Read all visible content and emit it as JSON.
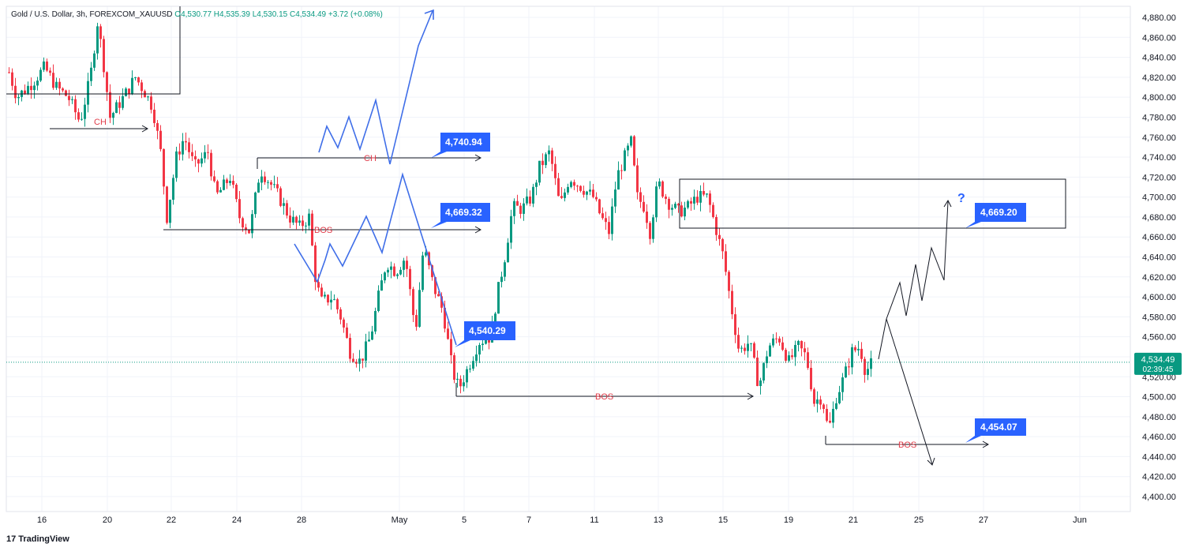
{
  "legend": {
    "symbol": "Gold / U.S. Dollar, 3h, FOREXCOM_XAUUSD",
    "ohlc": "O4,530.77  H4,535.39  L4,530.15  C4,534.49  +3.72 (+0.08%)"
  },
  "brand": {
    "logo": "17",
    "name": "TradingView"
  },
  "price_tag": {
    "price": "4,534.49",
    "countdown": "02:39:45"
  },
  "colors": {
    "up": "#089981",
    "down": "#f23645",
    "annotation_blue": "#2962ff",
    "path_blue": "#3f6ee8"
  },
  "chart_data": {
    "type": "candlestick",
    "interval": "3h",
    "ylim": [
      4380,
      4900
    ],
    "y_ticks": [
      4400,
      4420,
      4440,
      4460,
      4480,
      4500,
      4520,
      4540,
      4560,
      4580,
      4600,
      4620,
      4640,
      4660,
      4680,
      4700,
      4720,
      4740,
      4760,
      4780,
      4800,
      4820,
      4840,
      4860,
      4880
    ],
    "x_ticks": [
      "16",
      "20",
      "22",
      "24",
      "28",
      "May",
      "5",
      "7",
      "11",
      "13",
      "15",
      "19",
      "21",
      "25",
      "27",
      "Jun"
    ],
    "last_price": 4534.49,
    "anchors": [
      {
        "x": 8,
        "p": 4830
      },
      {
        "x": 20,
        "p": 4800
      },
      {
        "x": 40,
        "p": 4815
      },
      {
        "x": 55,
        "p": 4830
      },
      {
        "x": 70,
        "p": 4810
      },
      {
        "x": 85,
        "p": 4800
      },
      {
        "x": 100,
        "p": 4775
      },
      {
        "x": 113,
        "p": 4820
      },
      {
        "x": 122,
        "p": 4875
      },
      {
        "x": 128,
        "p": 4845
      },
      {
        "x": 138,
        "p": 4780
      },
      {
        "x": 155,
        "p": 4800
      },
      {
        "x": 170,
        "p": 4820
      },
      {
        "x": 182,
        "p": 4805
      },
      {
        "x": 192,
        "p": 4790
      },
      {
        "x": 202,
        "p": 4745
      },
      {
        "x": 210,
        "p": 4680
      },
      {
        "x": 222,
        "p": 4740
      },
      {
        "x": 232,
        "p": 4760
      },
      {
        "x": 245,
        "p": 4730
      },
      {
        "x": 262,
        "p": 4745
      },
      {
        "x": 272,
        "p": 4700
      },
      {
        "x": 290,
        "p": 4720
      },
      {
        "x": 302,
        "p": 4680
      },
      {
        "x": 315,
        "p": 4665
      },
      {
        "x": 328,
        "p": 4728
      },
      {
        "x": 340,
        "p": 4715
      },
      {
        "x": 352,
        "p": 4700
      },
      {
        "x": 365,
        "p": 4680
      },
      {
        "x": 378,
        "p": 4670
      },
      {
        "x": 390,
        "p": 4680
      },
      {
        "x": 398,
        "p": 4620
      },
      {
        "x": 405,
        "p": 4595
      },
      {
        "x": 420,
        "p": 4600
      },
      {
        "x": 430,
        "p": 4580
      },
      {
        "x": 442,
        "p": 4545
      },
      {
        "x": 455,
        "p": 4535
      },
      {
        "x": 468,
        "p": 4560
      },
      {
        "x": 478,
        "p": 4600
      },
      {
        "x": 488,
        "p": 4635
      },
      {
        "x": 500,
        "p": 4625
      },
      {
        "x": 512,
        "p": 4640
      },
      {
        "x": 525,
        "p": 4565
      },
      {
        "x": 535,
        "p": 4650
      },
      {
        "x": 548,
        "p": 4610
      },
      {
        "x": 560,
        "p": 4585
      },
      {
        "x": 572,
        "p": 4525
      },
      {
        "x": 580,
        "p": 4508
      },
      {
        "x": 592,
        "p": 4530
      },
      {
        "x": 605,
        "p": 4555
      },
      {
        "x": 620,
        "p": 4560
      },
      {
        "x": 628,
        "p": 4600
      },
      {
        "x": 638,
        "p": 4640
      },
      {
        "x": 648,
        "p": 4690
      },
      {
        "x": 660,
        "p": 4688
      },
      {
        "x": 672,
        "p": 4700
      },
      {
        "x": 682,
        "p": 4730
      },
      {
        "x": 695,
        "p": 4745
      },
      {
        "x": 708,
        "p": 4690
      },
      {
        "x": 720,
        "p": 4720
      },
      {
        "x": 735,
        "p": 4710
      },
      {
        "x": 750,
        "p": 4700
      },
      {
        "x": 760,
        "p": 4680
      },
      {
        "x": 770,
        "p": 4665
      },
      {
        "x": 780,
        "p": 4720
      },
      {
        "x": 790,
        "p": 4740
      },
      {
        "x": 798,
        "p": 4755
      },
      {
        "x": 806,
        "p": 4700
      },
      {
        "x": 815,
        "p": 4690
      },
      {
        "x": 822,
        "p": 4665
      },
      {
        "x": 832,
        "p": 4715
      },
      {
        "x": 845,
        "p": 4695
      },
      {
        "x": 858,
        "p": 4685
      },
      {
        "x": 870,
        "p": 4690
      },
      {
        "x": 882,
        "p": 4700
      },
      {
        "x": 895,
        "p": 4700
      },
      {
        "x": 905,
        "p": 4670
      },
      {
        "x": 915,
        "p": 4640
      },
      {
        "x": 925,
        "p": 4590
      },
      {
        "x": 935,
        "p": 4545
      },
      {
        "x": 948,
        "p": 4555
      },
      {
        "x": 960,
        "p": 4510
      },
      {
        "x": 972,
        "p": 4550
      },
      {
        "x": 985,
        "p": 4560
      },
      {
        "x": 998,
        "p": 4535
      },
      {
        "x": 1010,
        "p": 4550
      },
      {
        "x": 1020,
        "p": 4540
      },
      {
        "x": 1030,
        "p": 4495
      },
      {
        "x": 1040,
        "p": 4500
      },
      {
        "x": 1048,
        "p": 4465
      },
      {
        "x": 1058,
        "p": 4500
      },
      {
        "x": 1068,
        "p": 4520
      },
      {
        "x": 1078,
        "p": 4545
      },
      {
        "x": 1088,
        "p": 4550
      },
      {
        "x": 1095,
        "p": 4525
      },
      {
        "x": 1104,
        "p": 4534.49
      }
    ]
  },
  "annotations": {
    "tags": [
      "4,740.94",
      "4,669.32",
      "4,540.29",
      "4,669.20",
      "4,454.07"
    ],
    "labels": {
      "ch_1": "CH",
      "ch_2": "CH",
      "bos_1": "BOS",
      "bos_2": "BOS",
      "bos_3": "BOS"
    },
    "question": "?"
  }
}
